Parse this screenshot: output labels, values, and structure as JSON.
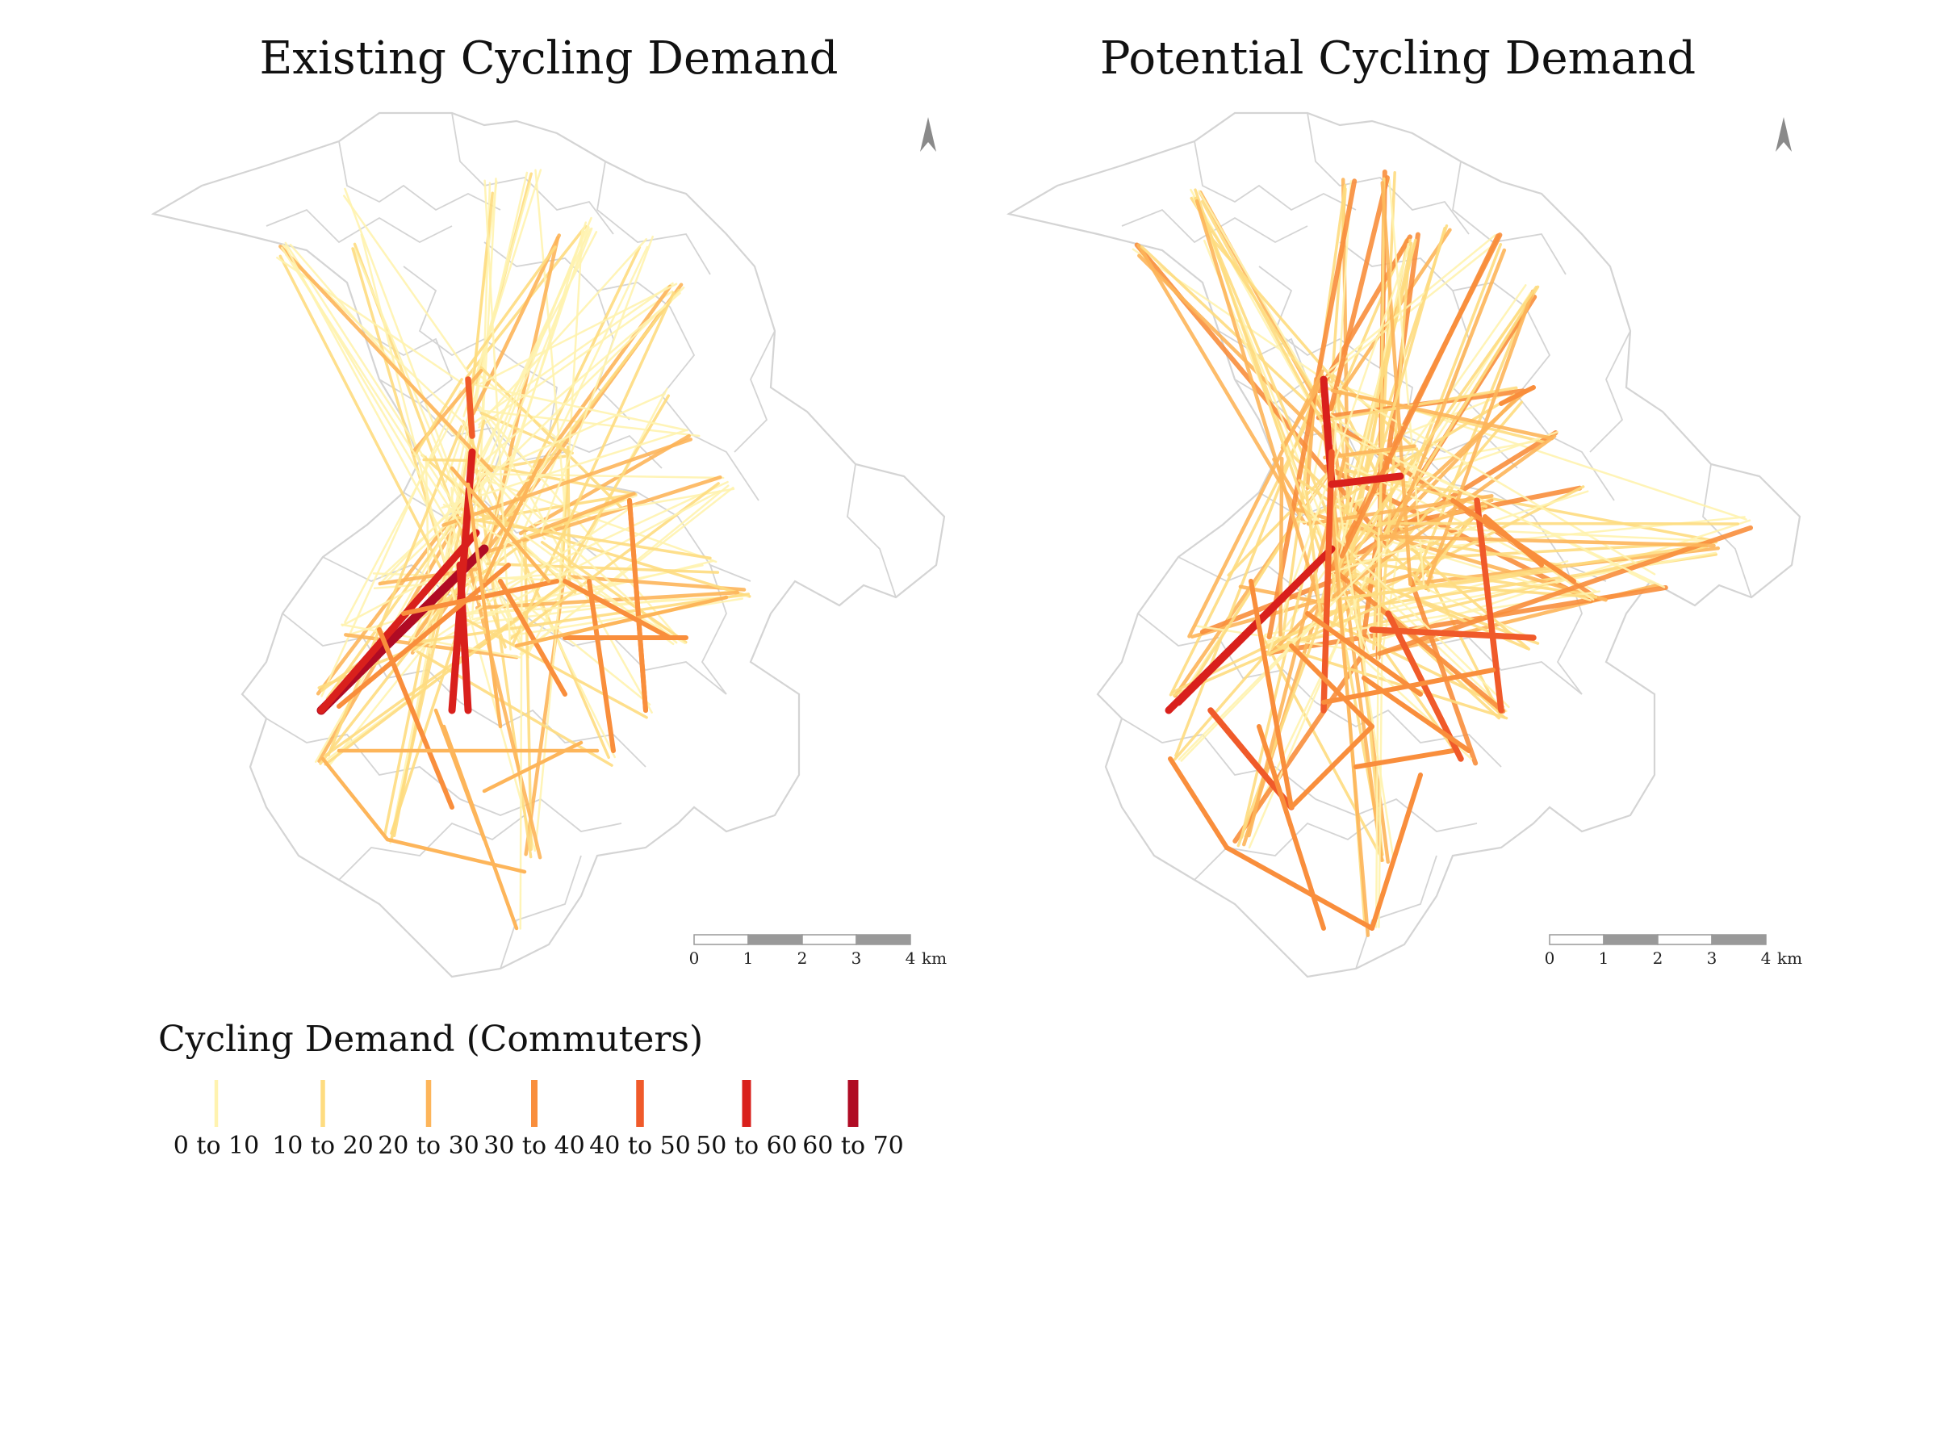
{
  "maps": [
    {
      "id": "existing",
      "title": "Existing Cycling Demand"
    },
    {
      "id": "potential",
      "title": "Potential Cycling Demand"
    }
  ],
  "scale_bar": {
    "ticks": [
      "0",
      "1",
      "2",
      "3",
      "4"
    ],
    "unit": "km"
  },
  "north_arrow": {
    "icon": "north-arrow-icon"
  },
  "legend": {
    "title": "Cycling Demand (Commuters)",
    "classes": [
      {
        "label": "0 to 10",
        "color": "#fff3b0"
      },
      {
        "label": "10 to 20",
        "color": "#fedc80"
      },
      {
        "label": "20 to 30",
        "color": "#fdb55a"
      },
      {
        "label": "30 to 40",
        "color": "#f98e3c"
      },
      {
        "label": "40 to 50",
        "color": "#f05a2a"
      },
      {
        "label": "50 to 60",
        "color": "#d9201c"
      },
      {
        "label": "60 to 70",
        "color": "#b00b24"
      }
    ]
  },
  "colors": {
    "boundary": "#d4d4d4",
    "scale_dark": "#999999",
    "north_arrow": "#8a8a8a"
  }
}
